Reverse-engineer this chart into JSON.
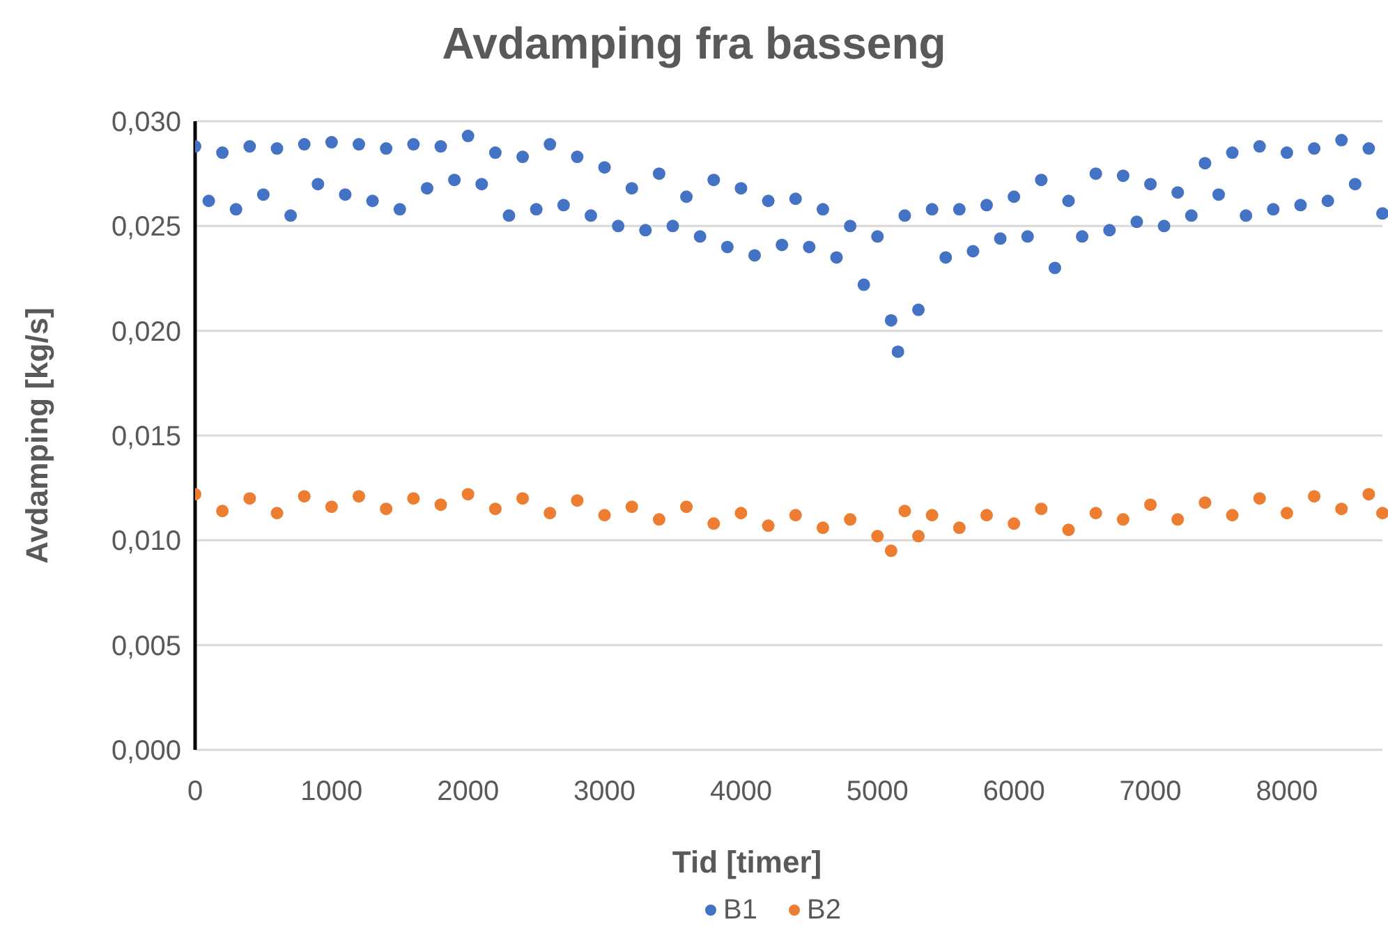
{
  "chart_data": {
    "type": "scatter",
    "title": "Avdamping fra basseng",
    "xlabel": "Tid [timer]",
    "ylabel": "Avdamping [kg/s]",
    "xlim": [
      0,
      8700
    ],
    "xticks": [
      0,
      1000,
      2000,
      3000,
      4000,
      5000,
      6000,
      7000,
      8000
    ],
    "ylim": [
      0,
      0.03
    ],
    "yticks": [
      {
        "value": 0,
        "label": "0,000"
      },
      {
        "value": 0.005,
        "label": "0,005"
      },
      {
        "value": 0.01,
        "label": "0,010"
      },
      {
        "value": 0.015,
        "label": "0,015"
      },
      {
        "value": 0.02,
        "label": "0,020"
      },
      {
        "value": 0.025,
        "label": "0,025"
      },
      {
        "value": 0.03,
        "label": "0,030"
      }
    ],
    "grid": "y",
    "legend": "bottom",
    "marker": "circle",
    "series": [
      {
        "name": "B1",
        "color": "#4472c4",
        "x": [
          0,
          100,
          200,
          300,
          400,
          500,
          600,
          700,
          800,
          900,
          1000,
          1100,
          1200,
          1300,
          1400,
          1500,
          1600,
          1700,
          1800,
          1900,
          2000,
          2100,
          2200,
          2300,
          2400,
          2500,
          2600,
          2700,
          2800,
          2900,
          3000,
          3100,
          3200,
          3300,
          3400,
          3500,
          3600,
          3700,
          3800,
          3900,
          4000,
          4100,
          4200,
          4300,
          4400,
          4500,
          4600,
          4700,
          4800,
          4900,
          5000,
          5100,
          5150,
          5200,
          5300,
          5400,
          5500,
          5600,
          5700,
          5800,
          5900,
          6000,
          6100,
          6200,
          6300,
          6400,
          6500,
          6600,
          6700,
          6800,
          6900,
          7000,
          7100,
          7200,
          7300,
          7400,
          7500,
          7600,
          7700,
          7800,
          7900,
          8000,
          8100,
          8200,
          8300,
          8400,
          8500,
          8600,
          8700
        ],
        "values": [
          0.0288,
          0.0262,
          0.0285,
          0.0258,
          0.0288,
          0.0265,
          0.0287,
          0.0255,
          0.0289,
          0.027,
          0.029,
          0.0265,
          0.0289,
          0.0262,
          0.0287,
          0.0258,
          0.0289,
          0.0268,
          0.0288,
          0.0272,
          0.0293,
          0.027,
          0.0285,
          0.0255,
          0.0283,
          0.0258,
          0.0289,
          0.026,
          0.0283,
          0.0255,
          0.0278,
          0.025,
          0.0268,
          0.0248,
          0.0275,
          0.025,
          0.0264,
          0.0245,
          0.0272,
          0.024,
          0.0268,
          0.0236,
          0.0262,
          0.0241,
          0.0263,
          0.024,
          0.0258,
          0.0235,
          0.025,
          0.0222,
          0.0245,
          0.0205,
          0.019,
          0.0255,
          0.021,
          0.0258,
          0.0235,
          0.0258,
          0.0238,
          0.026,
          0.0244,
          0.0264,
          0.0245,
          0.0272,
          0.023,
          0.0262,
          0.0245,
          0.0275,
          0.0248,
          0.0274,
          0.0252,
          0.027,
          0.025,
          0.0266,
          0.0255,
          0.028,
          0.0265,
          0.0285,
          0.0255,
          0.0288,
          0.0258,
          0.0285,
          0.026,
          0.0287,
          0.0262,
          0.0291,
          0.027,
          0.0287,
          0.0256
        ]
      },
      {
        "name": "B2",
        "color": "#ed7d31",
        "x": [
          0,
          200,
          400,
          600,
          800,
          1000,
          1200,
          1400,
          1600,
          1800,
          2000,
          2200,
          2400,
          2600,
          2800,
          3000,
          3200,
          3400,
          3600,
          3800,
          4000,
          4200,
          4400,
          4600,
          4800,
          5000,
          5100,
          5200,
          5300,
          5400,
          5600,
          5800,
          6000,
          6200,
          6400,
          6600,
          6800,
          7000,
          7200,
          7400,
          7600,
          7800,
          8000,
          8200,
          8400,
          8600,
          8700
        ],
        "values": [
          0.0122,
          0.0114,
          0.012,
          0.0113,
          0.0121,
          0.0116,
          0.0121,
          0.0115,
          0.012,
          0.0117,
          0.0122,
          0.0115,
          0.012,
          0.0113,
          0.0119,
          0.0112,
          0.0116,
          0.011,
          0.0116,
          0.0108,
          0.0113,
          0.0107,
          0.0112,
          0.0106,
          0.011,
          0.0102,
          0.0095,
          0.0114,
          0.0102,
          0.0112,
          0.0106,
          0.0112,
          0.0108,
          0.0115,
          0.0105,
          0.0113,
          0.011,
          0.0117,
          0.011,
          0.0118,
          0.0112,
          0.012,
          0.0113,
          0.0121,
          0.0115,
          0.0122,
          0.0113
        ]
      }
    ]
  }
}
